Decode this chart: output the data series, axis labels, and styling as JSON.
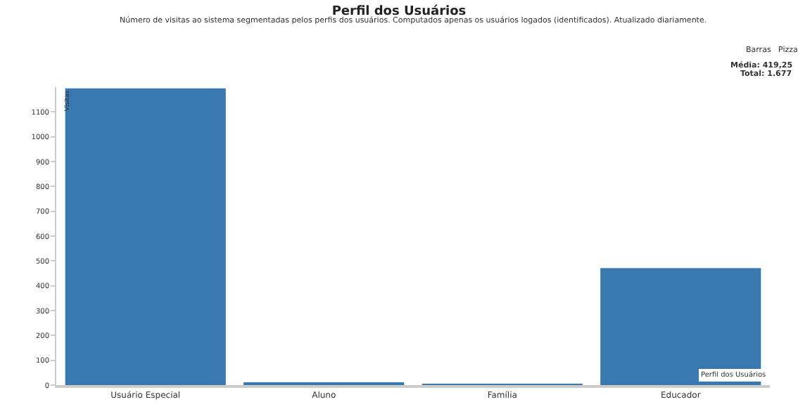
{
  "chart_data": {
    "type": "bar",
    "title": "Perfil dos Usuários",
    "subtitle": "Número de visitas ao sistema segmentadas pelos perfis dos usuários. Computados apenas os usuários logados (identificados). Atualizado diariamente.",
    "xlabel": "Perfil dos Usuários",
    "ylabel": "Visitas",
    "categories": [
      "Usuário Especial",
      "Aluno",
      "Família",
      "Educador"
    ],
    "values": [
      1195,
      8,
      3,
      471
    ],
    "color": "#3a78b0",
    "ylim": [
      0,
      1200
    ],
    "yticks": [
      0,
      100,
      200,
      300,
      400,
      500,
      600,
      700,
      800,
      900,
      1000,
      1100
    ],
    "annotations": [
      "Barras",
      "Pizza",
      "Média: 419,25",
      "Total: 1.677"
    ]
  }
}
